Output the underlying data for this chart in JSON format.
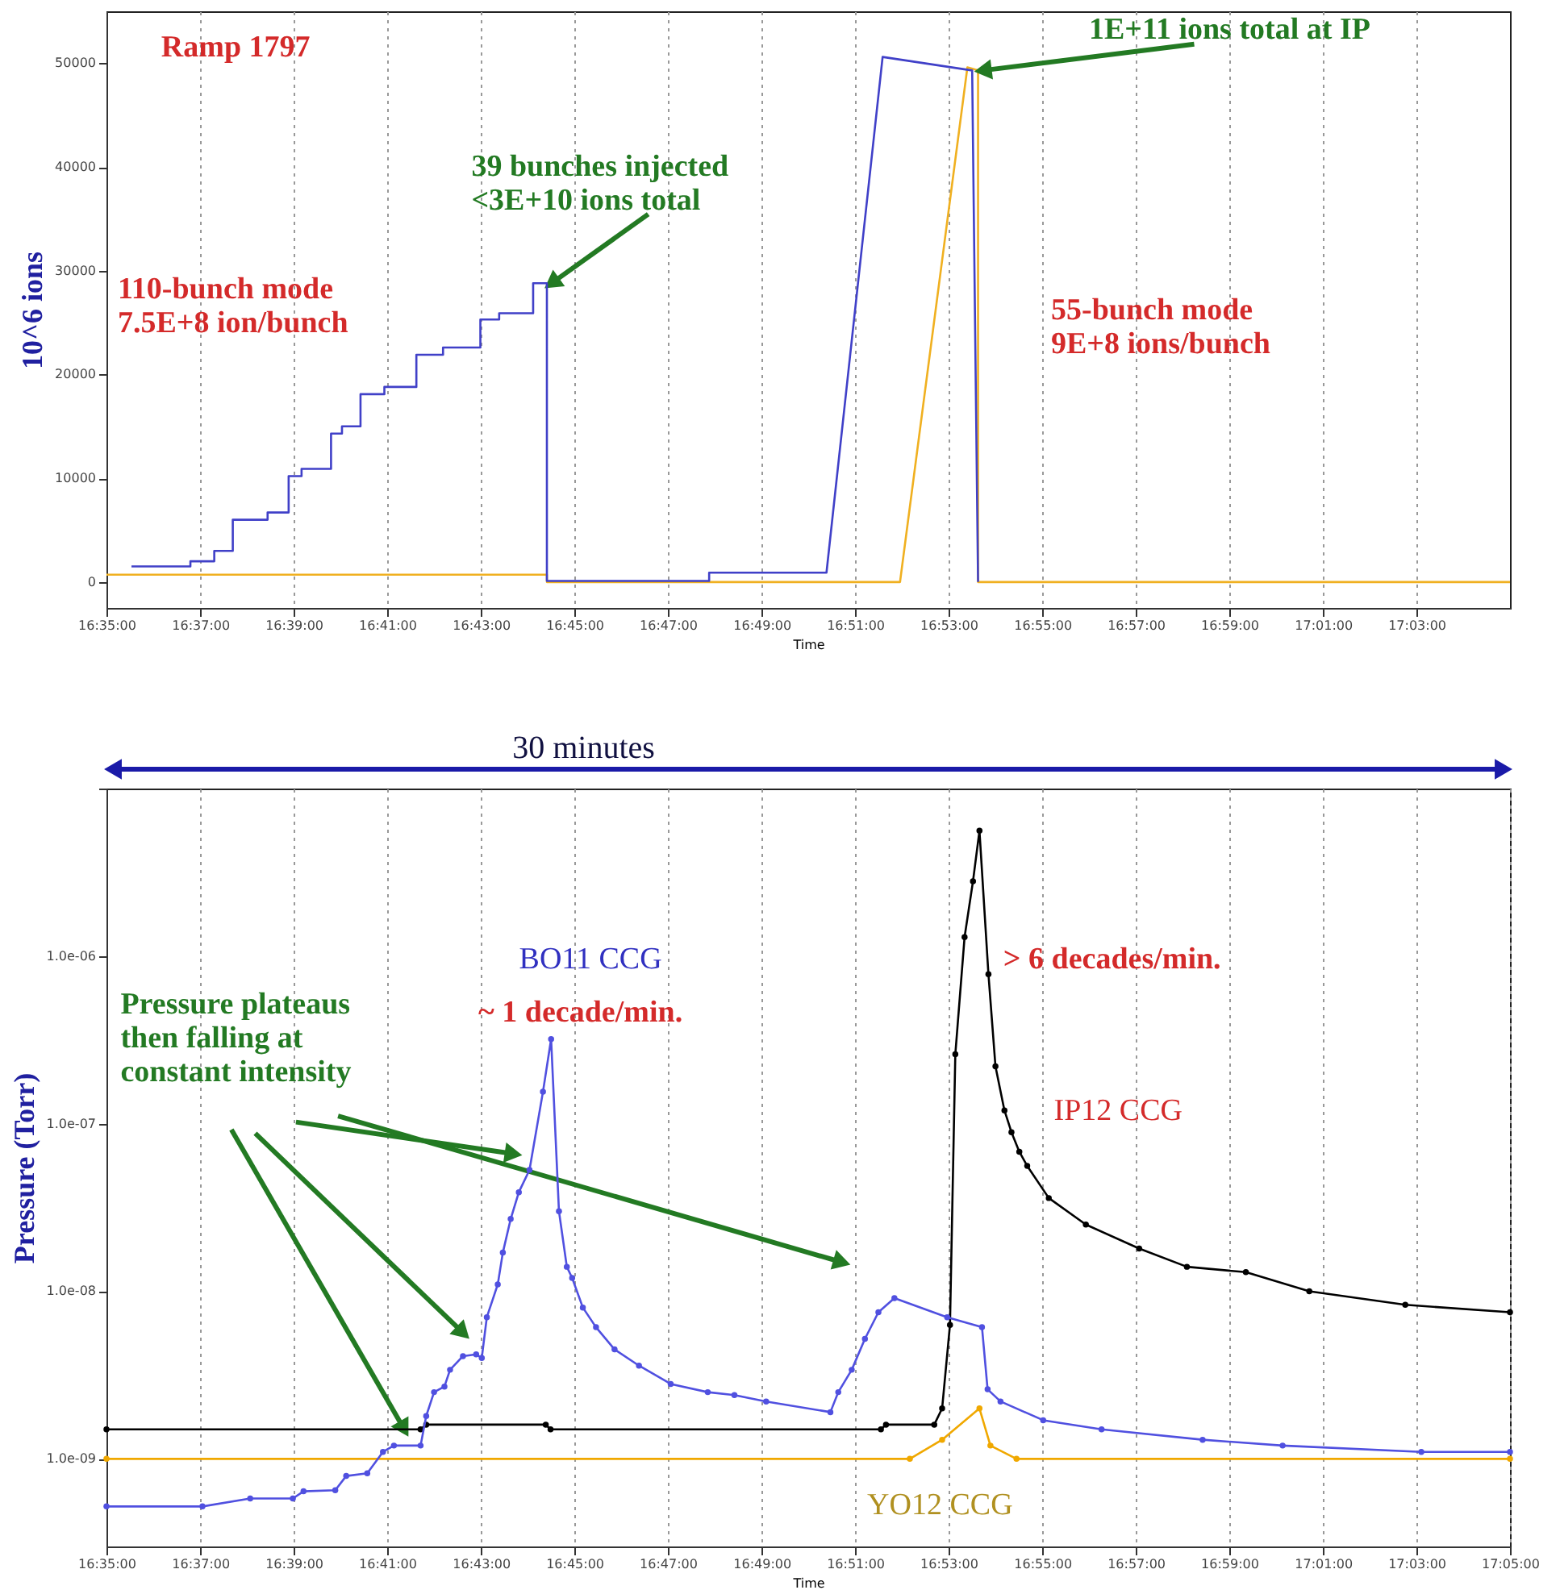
{
  "chart_data": [
    {
      "type": "line",
      "xlabel": "Time",
      "ylabel": "10^6 ions",
      "xlim": [
        16.5833,
        17.0833
      ],
      "ylim": [
        -2500,
        55000
      ],
      "xticks": [
        {
          "value": 16.5833,
          "label": "16:35:00"
        },
        {
          "value": 16.6167,
          "label": "16:37:00"
        },
        {
          "value": 16.65,
          "label": "16:39:00"
        },
        {
          "value": 16.6833,
          "label": "16:41:00"
        },
        {
          "value": 16.7167,
          "label": "16:43:00"
        },
        {
          "value": 16.75,
          "label": "16:45:00"
        },
        {
          "value": 16.7833,
          "label": "16:47:00"
        },
        {
          "value": 16.8167,
          "label": "16:49:00"
        },
        {
          "value": 16.85,
          "label": "16:51:00"
        },
        {
          "value": 16.8833,
          "label": "16:53:00"
        },
        {
          "value": 16.9167,
          "label": "16:55:00"
        },
        {
          "value": 16.95,
          "label": "16:57:00"
        },
        {
          "value": 16.9833,
          "label": "16:59:00"
        },
        {
          "value": 17.0167,
          "label": "17:01:00"
        },
        {
          "value": 17.05,
          "label": "17:03:00"
        }
      ],
      "yticks": [
        0,
        10000,
        20000,
        30000,
        40000,
        50000
      ],
      "grid": "x",
      "marker": "none",
      "line_style": "solid",
      "annotations": [
        "Ramp 1797",
        "110-bunch mode\n7.5E+8 ion/bunch",
        {
          "text": "39 bunches injected\n<3E+10 ions total",
          "x": 16.7402,
          "y": 28800
        },
        {
          "text": "1E+11 ions total at IP",
          "x": 16.8938,
          "y": 49300
        },
        "55-bunch mode\n9E+8 ions/bunch"
      ],
      "series": [
        {
          "color": "#f0b020",
          "x": [
            16.5833,
            16.7402,
            16.7402,
            16.866,
            16.89,
            16.8938,
            16.8938,
            17.0833
          ],
          "values": [
            700,
            700,
            0,
            0,
            49600,
            49300,
            0,
            0
          ]
        },
        {
          "color": "#4040c8",
          "x": [
            16.5922,
            16.6132,
            16.6132,
            16.6217,
            16.6217,
            16.6283,
            16.6283,
            16.6407,
            16.6407,
            16.6482,
            16.6482,
            16.6528,
            16.6528,
            16.6633,
            16.6633,
            16.6672,
            16.6672,
            16.6738,
            16.6738,
            16.6823,
            16.6823,
            16.6937,
            16.6937,
            16.7032,
            16.7032,
            16.7165,
            16.7165,
            16.7232,
            16.7232,
            16.7353,
            16.7353,
            16.7402,
            16.7402,
            16.798,
            16.798,
            16.8398,
            16.8598,
            16.8917,
            16.8938
          ],
          "values": [
            1500,
            1500,
            2000,
            2000,
            3000,
            3000,
            6000,
            6000,
            6700,
            6700,
            10200,
            10200,
            10900,
            10900,
            14300,
            14300,
            15000,
            15000,
            18100,
            18100,
            18800,
            18800,
            21900,
            21900,
            22600,
            22600,
            25300,
            25300,
            25900,
            25900,
            28800,
            28800,
            100,
            100,
            900,
            900,
            50600,
            49300,
            0
          ]
        }
      ]
    },
    {
      "type": "line",
      "xlabel": "Time",
      "ylabel": "Pressure (Torr)",
      "log": true,
      "xlim": [
        16.5833,
        17.0833
      ],
      "ylim": [
        3e-10,
        1e-05
      ],
      "xticks": [
        {
          "value": 16.5833,
          "label": "16:35:00"
        },
        {
          "value": 16.6167,
          "label": "16:37:00"
        },
        {
          "value": 16.65,
          "label": "16:39:00"
        },
        {
          "value": 16.6833,
          "label": "16:41:00"
        },
        {
          "value": 16.7167,
          "label": "16:43:00"
        },
        {
          "value": 16.75,
          "label": "16:45:00"
        },
        {
          "value": 16.7833,
          "label": "16:47:00"
        },
        {
          "value": 16.8167,
          "label": "16:49:00"
        },
        {
          "value": 16.85,
          "label": "16:51:00"
        },
        {
          "value": 16.8833,
          "label": "16:53:00"
        },
        {
          "value": 16.9167,
          "label": "16:55:00"
        },
        {
          "value": 16.95,
          "label": "16:57:00"
        },
        {
          "value": 16.9833,
          "label": "16:59:00"
        },
        {
          "value": 17.0167,
          "label": "17:01:00"
        },
        {
          "value": 17.05,
          "label": "17:03:00"
        },
        {
          "value": 17.0833,
          "label": "17:05:00"
        }
      ],
      "yticks": [
        {
          "value": 1e-09,
          "label": "1.0e-09"
        },
        {
          "value": 1e-08,
          "label": "1.0e-08"
        },
        {
          "value": 1e-07,
          "label": "1.0e-07"
        },
        {
          "value": 1e-06,
          "label": "1.0e-06"
        },
        {
          "value": 1e-05,
          "label": null
        }
      ],
      "grid": "x",
      "marker": "circle",
      "line_style": "solid",
      "annotations": [
        "~ 1 decade/min.",
        "> 6 decades/min.",
        "Pressure plateaus\nthen falling at\nconstant intensity",
        "30 minutes"
      ],
      "series": [
        {
          "name": "YO12 CCG",
          "color": "#f0a800",
          "x": [
            16.5833,
            16.8695,
            16.881,
            16.8943,
            16.8982,
            16.9075,
            17.0833
          ],
          "values": [
            1e-09,
            1e-09,
            1.3e-09,
            2e-09,
            1.2e-09,
            1e-09,
            1e-09
          ]
        },
        {
          "name": "IP12 CCG",
          "color": "#000000",
          "x": [
            16.5833,
            16.6952,
            16.6972,
            16.7398,
            16.7415,
            16.8592,
            16.861,
            16.8782,
            16.881,
            16.8838,
            16.8857,
            16.889,
            16.892,
            16.8943,
            16.8975,
            16.9,
            16.9032,
            16.9057,
            16.9085,
            16.9113,
            16.919,
            16.9322,
            16.9512,
            16.9682,
            16.9892,
            17.0118,
            17.046,
            17.0833
          ],
          "values": [
            1.5e-09,
            1.5e-09,
            1.6e-09,
            1.6e-09,
            1.5e-09,
            1.5e-09,
            1.6e-09,
            1.6e-09,
            2e-09,
            6.3e-09,
            2.6e-07,
            1.3e-06,
            2.8e-06,
            5.6e-06,
            7.8e-07,
            2.2e-07,
            1.2e-07,
            8.9e-08,
            6.8e-08,
            5.6e-08,
            3.6e-08,
            2.5e-08,
            1.8e-08,
            1.4e-08,
            1.3e-08,
            1e-08,
            8.3e-09,
            7.5e-09
          ]
        },
        {
          "name": "BO11 CCG",
          "color": "#5050e0",
          "x": [
            16.5833,
            16.6175,
            16.6345,
            16.6497,
            16.6535,
            16.6648,
            16.6687,
            16.6762,
            16.6818,
            16.6857,
            16.6952,
            16.6972,
            16.7,
            16.7037,
            16.7057,
            16.7103,
            16.715,
            16.717,
            16.7188,
            16.7227,
            16.7245,
            16.7273,
            16.7302,
            16.734,
            16.7388,
            16.7417,
            16.7445,
            16.7473,
            16.7492,
            16.753,
            16.7577,
            16.7643,
            16.773,
            16.7843,
            16.7975,
            16.807,
            16.8183,
            16.8412,
            16.844,
            16.8488,
            16.8535,
            16.8583,
            16.864,
            16.8828,
            16.8952,
            16.8972,
            16.9018,
            16.917,
            16.9378,
            16.9738,
            17.0023,
            17.0517,
            17.0833
          ],
          "values": [
            5.2e-10,
            5.2e-10,
            5.8e-10,
            5.8e-10,
            6.4e-10,
            6.5e-10,
            7.9e-10,
            8.2e-10,
            1.1e-09,
            1.2e-09,
            1.2e-09,
            1.8e-09,
            2.5e-09,
            2.7e-09,
            3.4e-09,
            4.1e-09,
            4.2e-09,
            4e-09,
            7e-09,
            1.1e-08,
            1.7e-08,
            2.7e-08,
            3.9e-08,
            5.3e-08,
            1.55e-07,
            3.2e-07,
            3e-08,
            1.4e-08,
            1.2e-08,
            8e-09,
            6.1e-09,
            4.5e-09,
            3.6e-09,
            2.8e-09,
            2.5e-09,
            2.4e-09,
            2.2e-09,
            1.9e-09,
            2.5e-09,
            3.4e-09,
            5.2e-09,
            7.5e-09,
            9.1e-09,
            7e-09,
            6.1e-09,
            2.6e-09,
            2.2e-09,
            1.7e-09,
            1.5e-09,
            1.3e-09,
            1.2e-09,
            1.1e-09,
            1.1e-09
          ]
        }
      ]
    }
  ]
}
